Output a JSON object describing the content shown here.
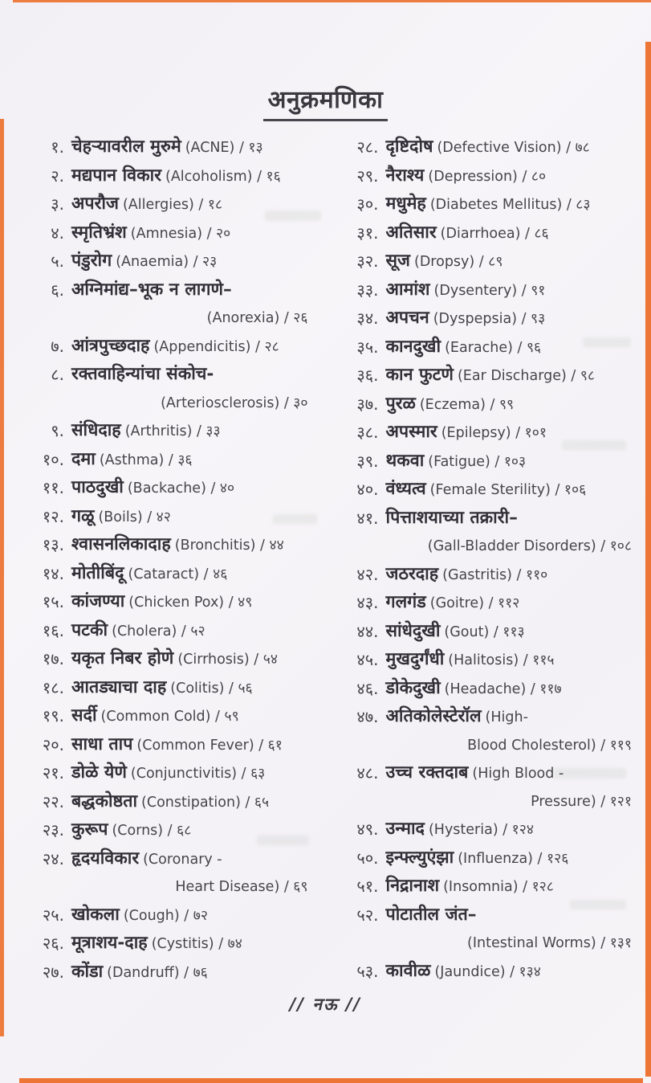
{
  "page_title": "अनुक्रमणिका",
  "footer": {
    "page_label": "// नऊ //"
  },
  "colors": {
    "paper": "#f4f2f6",
    "ink": "#34323a",
    "book_edge": "#ec6f2b"
  },
  "toc": {
    "left": [
      {
        "num": "१.",
        "marathi": "चेहऱ्यावरील मुरुमे",
        "english": "(ACNE) / १३"
      },
      {
        "num": "२.",
        "marathi": "मद्यपान विकार",
        "english": "(Alcoholism) / १६"
      },
      {
        "num": "३.",
        "marathi": "अपरौज",
        "english": "(Allergies) / १८"
      },
      {
        "num": "४.",
        "marathi": "स्मृतिभ्रंश",
        "english": "(Amnesia) / २०"
      },
      {
        "num": "५.",
        "marathi": "पंडुरोग",
        "english": "(Anaemia) / २३"
      },
      {
        "num": "६.",
        "marathi": "अग्निमांद्य–भूक न लागणे–",
        "english": "",
        "line2": "(Anorexia) / २६"
      },
      {
        "num": "७.",
        "marathi": "आंत्रपुच्छदाह",
        "english": "(Appendicitis) / २८"
      },
      {
        "num": "८.",
        "marathi": "रक्तवाहिन्यांचा संकोच-",
        "english": "",
        "line2": "(Arteriosclerosis) / ३०"
      },
      {
        "num": "९.",
        "marathi": "संधिदाह",
        "english": "(Arthritis) / ३३"
      },
      {
        "num": "१०.",
        "marathi": "दमा",
        "english": "(Asthma) / ३६"
      },
      {
        "num": "११.",
        "marathi": "पाठदुखी",
        "english": "(Backache) / ४०"
      },
      {
        "num": "१२.",
        "marathi": "गळू",
        "english": "(Boils) / ४२"
      },
      {
        "num": "१३.",
        "marathi": "श्वासनलिकादाह",
        "english": "(Bronchitis) / ४४"
      },
      {
        "num": "१४.",
        "marathi": "मोतीबिंदू",
        "english": "(Cataract) / ४६"
      },
      {
        "num": "१५.",
        "marathi": "कांजण्या",
        "english": "(Chicken Pox) / ४९"
      },
      {
        "num": "१६.",
        "marathi": "पटकी",
        "english": "(Cholera) / ५२"
      },
      {
        "num": "१७.",
        "marathi": "यकृत निबर होणे",
        "english": "(Cirrhosis) / ५४"
      },
      {
        "num": "१८.",
        "marathi": "आतड्याचा दाह",
        "english": "(Colitis) / ५६"
      },
      {
        "num": "१९.",
        "marathi": "सर्दी",
        "english": "(Common Cold) / ५९"
      },
      {
        "num": "२०.",
        "marathi": "साधा ताप",
        "english": "(Common Fever) / ६१"
      },
      {
        "num": "२१.",
        "marathi": "डोळे येणे",
        "english": "(Conjunctivitis) / ६३"
      },
      {
        "num": "२२.",
        "marathi": "बद्धकोष्ठता",
        "english": "(Constipation) / ६५"
      },
      {
        "num": "२३.",
        "marathi": "कुरूप",
        "english": "(Corns) / ६८"
      },
      {
        "num": "२४.",
        "marathi": "हृदयविकार",
        "english": "(Coronary -",
        "line2": "Heart Disease) / ६९"
      },
      {
        "num": "२५.",
        "marathi": "खोकला",
        "english": "(Cough) / ७२"
      },
      {
        "num": "२६.",
        "marathi": "मूत्राशय-दाह",
        "english": "(Cystitis) / ७४"
      },
      {
        "num": "२७.",
        "marathi": "कोंडा",
        "english": "(Dandruff) / ७६"
      }
    ],
    "right": [
      {
        "num": "२८.",
        "marathi": "दृष्टिदोष",
        "english": "(Defective Vision) / ७८"
      },
      {
        "num": "२९.",
        "marathi": "नैराश्य",
        "english": "(Depression) / ८०"
      },
      {
        "num": "३०.",
        "marathi": "मधुमेह",
        "english": "(Diabetes Mellitus) / ८३"
      },
      {
        "num": "३१.",
        "marathi": "अतिसार",
        "english": "(Diarrhoea) / ८६"
      },
      {
        "num": "३२.",
        "marathi": "सूज",
        "english": "(Dropsy) / ८९"
      },
      {
        "num": "३३.",
        "marathi": "आमांश",
        "english": "(Dysentery) / ९१"
      },
      {
        "num": "३४.",
        "marathi": "अपचन",
        "english": "(Dyspepsia) / ९३"
      },
      {
        "num": "३५.",
        "marathi": "कानदुखी",
        "english": "(Earache) / ९६"
      },
      {
        "num": "३६.",
        "marathi": "कान फुटणे",
        "english": "(Ear Discharge) / ९८"
      },
      {
        "num": "३७.",
        "marathi": "पुरळ",
        "english": "(Eczema) / ९९"
      },
      {
        "num": "३८.",
        "marathi": "अपस्मार",
        "english": "(Epilepsy) / १०१"
      },
      {
        "num": "३९.",
        "marathi": "थकवा",
        "english": "(Fatigue) / १०३"
      },
      {
        "num": "४०.",
        "marathi": "वंध्यत्व",
        "english": "(Female Sterility) / १०६"
      },
      {
        "num": "४१.",
        "marathi": "पित्ताशयाच्या तक्रारी–",
        "english": "",
        "line2": "(Gall-Bladder Disorders) / १०८"
      },
      {
        "num": "४२.",
        "marathi": "जठरदाह",
        "english": "(Gastritis) / ११०"
      },
      {
        "num": "४३.",
        "marathi": "गलगंड",
        "english": "(Goitre) / ११२"
      },
      {
        "num": "४४.",
        "marathi": "सांधेदुखी",
        "english": "(Gout) / ११३"
      },
      {
        "num": "४५.",
        "marathi": "मुखदुर्गंधी",
        "english": "(Halitosis) / ११५"
      },
      {
        "num": "४६.",
        "marathi": "डोकेदुखी",
        "english": "(Headache) / ११७"
      },
      {
        "num": "४७.",
        "marathi": "अतिकोलेस्टेरॉल",
        "english": "(High-",
        "line2": "Blood Cholesterol) / ११९"
      },
      {
        "num": "४८.",
        "marathi": "उच्च रक्तदाब",
        "english": "(High Blood -",
        "line2": "Pressure) / १२१"
      },
      {
        "num": "४९.",
        "marathi": "उन्माद",
        "english": "(Hysteria) / १२४"
      },
      {
        "num": "५०.",
        "marathi": "इन्फ्ल्युएंझा",
        "english": "(Influenza) / १२६"
      },
      {
        "num": "५१.",
        "marathi": "निद्रानाश",
        "english": "(Insomnia) / १२८"
      },
      {
        "num": "५२.",
        "marathi": "पोटातील जंत–",
        "english": "",
        "line2": "(Intestinal Worms) / १३१"
      },
      {
        "num": "५३.",
        "marathi": "कावीळ",
        "english": "(Jaundice) / १३४"
      }
    ]
  }
}
